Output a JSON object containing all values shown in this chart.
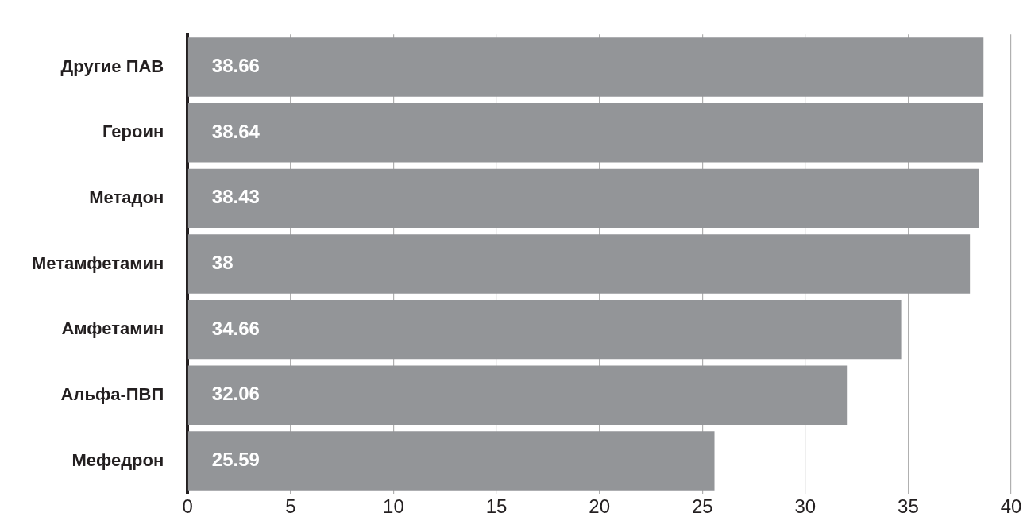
{
  "chart_data": {
    "type": "bar",
    "orientation": "horizontal",
    "categories": [
      "Другие ПАВ",
      "Героин",
      "Метадон",
      "Метамфетамин",
      "Амфетамин",
      "Альфа-ПВП",
      "Мефедрон"
    ],
    "values": [
      38.66,
      38.64,
      38.43,
      38,
      34.66,
      32.06,
      25.59
    ],
    "color": "#939598",
    "xlim": [
      0,
      40
    ],
    "xticks": [
      0,
      5,
      10,
      15,
      20,
      25,
      30,
      35,
      40
    ],
    "grid": "x",
    "data_labels": true,
    "legend": false
  }
}
